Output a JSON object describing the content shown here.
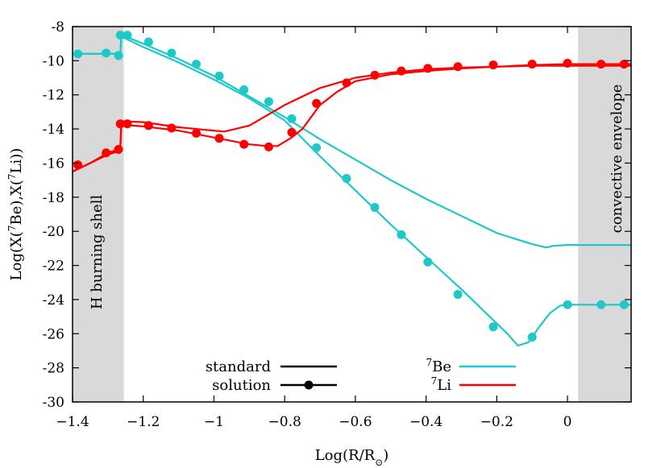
{
  "chart_data": {
    "type": "line",
    "xlabel": "Log(R/R",
    "xlabel_sub": "⊙",
    "xlabel_close": ")",
    "ylabel_parts": [
      "Log(X(",
      "7",
      "Be),X(",
      "7",
      "Li))"
    ],
    "xlim": [
      -1.4,
      0.18
    ],
    "ylim": [
      -30,
      -8
    ],
    "x_ticks": [
      {
        "v": -1.4,
        "label": "−1.4"
      },
      {
        "v": -1.2,
        "label": "−1.2"
      },
      {
        "v": -1.0,
        "label": "−1"
      },
      {
        "v": -0.8,
        "label": "−0.8"
      },
      {
        "v": -0.6,
        "label": "−0.6"
      },
      {
        "v": -0.4,
        "label": "−0.4"
      },
      {
        "v": -0.2,
        "label": "−0.2"
      },
      {
        "v": 0,
        "label": "0"
      }
    ],
    "y_ticks": [
      {
        "v": -8,
        "label": "-8"
      },
      {
        "v": -10,
        "label": "-10"
      },
      {
        "v": -12,
        "label": "-12"
      },
      {
        "v": -14,
        "label": "-14"
      },
      {
        "v": -16,
        "label": "-16"
      },
      {
        "v": -18,
        "label": "-18"
      },
      {
        "v": -20,
        "label": "-20"
      },
      {
        "v": -22,
        "label": "-22"
      },
      {
        "v": -24,
        "label": "-24"
      },
      {
        "v": -26,
        "label": "-26"
      },
      {
        "v": -28,
        "label": "-28"
      },
      {
        "v": -30,
        "label": "-30"
      }
    ],
    "shaded_regions": [
      {
        "x0": -1.4,
        "x1": -1.255,
        "label": "H burning shell",
        "color": "#d9d9d9"
      },
      {
        "x0": 0.03,
        "x1": 0.18,
        "label": "convective envelope",
        "color": "#d9d9d9"
      }
    ],
    "colors": {
      "be7": "#1ec8c8",
      "li7": "#ff0000",
      "legend_black": "#000000"
    },
    "legend": {
      "styles": [
        {
          "label": "standard",
          "marker": false
        },
        {
          "label": "solution",
          "marker": true
        }
      ],
      "species": [
        {
          "sup": "7",
          "label": "Be",
          "color": "#1ec8c8"
        },
        {
          "sup": "7",
          "label": "Li",
          "color": "#ff0000"
        }
      ]
    },
    "series": [
      {
        "name": "7Be standard",
        "color": "#1ec8c8",
        "markers": false,
        "x": [
          -1.4,
          -1.3,
          -1.27,
          -1.265,
          -1.262,
          -1.26,
          -1.2,
          -1.1,
          -1.0,
          -0.95,
          -0.9,
          -0.85,
          -0.8,
          -0.7,
          -0.6,
          -0.5,
          -0.4,
          -0.3,
          -0.2,
          -0.1,
          -0.06,
          -0.04,
          0.0,
          0.05,
          0.18
        ],
        "y": [
          -9.6,
          -9.6,
          -9.6,
          -9.6,
          -8.5,
          -8.5,
          -9.0,
          -9.9,
          -10.9,
          -11.5,
          -12.1,
          -12.7,
          -13.3,
          -14.6,
          -15.8,
          -17.0,
          -18.1,
          -19.1,
          -20.1,
          -20.75,
          -20.95,
          -20.85,
          -20.8,
          -20.8,
          -20.8
        ]
      },
      {
        "name": "7Be solution",
        "color": "#1ec8c8",
        "markers": true,
        "x": [
          -1.4,
          -1.3,
          -1.27,
          -1.265,
          -1.262,
          -1.26,
          -1.2,
          -1.1,
          -1.0,
          -0.9,
          -0.8,
          -0.7,
          -0.6,
          -0.5,
          -0.4,
          -0.3,
          -0.2,
          -0.17,
          -0.14,
          -0.11,
          -0.08,
          -0.05,
          -0.02,
          0.0,
          0.05,
          0.18
        ],
        "y": [
          -9.6,
          -9.6,
          -9.6,
          -9.75,
          -8.6,
          -8.6,
          -9.2,
          -10.1,
          -11.1,
          -12.2,
          -13.5,
          -15.6,
          -17.6,
          -19.6,
          -21.5,
          -23.4,
          -25.4,
          -26.0,
          -26.7,
          -26.5,
          -25.6,
          -24.8,
          -24.35,
          -24.3,
          -24.3,
          -24.3
        ]
      },
      {
        "name": "7Li standard",
        "color": "#ff0000",
        "markers": false,
        "x": [
          -1.4,
          -1.35,
          -1.3,
          -1.27,
          -1.265,
          -1.262,
          -1.26,
          -1.2,
          -1.1,
          -1.0,
          -0.97,
          -0.9,
          -0.8,
          -0.7,
          -0.6,
          -0.5,
          -0.4,
          -0.3,
          -0.2,
          -0.1,
          0.0,
          0.18
        ],
        "y": [
          -16.5,
          -16.0,
          -15.5,
          -15.3,
          -15.2,
          -13.6,
          -13.55,
          -13.6,
          -13.9,
          -14.1,
          -14.15,
          -13.8,
          -12.6,
          -11.6,
          -11.0,
          -10.7,
          -10.5,
          -10.4,
          -10.35,
          -10.3,
          -10.3,
          -10.3
        ]
      },
      {
        "name": "7Li solution",
        "color": "#ff0000",
        "markers": true,
        "x": [
          -1.4,
          -1.35,
          -1.3,
          -1.27,
          -1.265,
          -1.262,
          -1.26,
          -1.2,
          -1.1,
          -1.0,
          -0.9,
          -0.85,
          -0.82,
          -0.78,
          -0.75,
          -0.7,
          -0.65,
          -0.6,
          -0.5,
          -0.4,
          -0.3,
          -0.2,
          -0.1,
          0.0,
          0.1,
          0.18
        ],
        "y": [
          -16.5,
          -16.0,
          -15.4,
          -15.2,
          -15.2,
          -13.8,
          -13.75,
          -13.85,
          -14.1,
          -14.5,
          -14.9,
          -15.0,
          -15.0,
          -14.5,
          -14.0,
          -12.6,
          -11.8,
          -11.2,
          -10.8,
          -10.6,
          -10.45,
          -10.35,
          -10.25,
          -10.2,
          -10.2,
          -10.2
        ]
      }
    ],
    "marker_points": {
      "7Be solution": [
        [
          -1.385,
          -9.6
        ],
        [
          -1.305,
          -9.55
        ],
        [
          -1.27,
          -9.7
        ],
        [
          -1.265,
          -8.5
        ],
        [
          -1.245,
          -8.5
        ],
        [
          -1.185,
          -8.9
        ],
        [
          -1.12,
          -9.55
        ],
        [
          -1.05,
          -10.2
        ],
        [
          -0.985,
          -10.9
        ],
        [
          -0.915,
          -11.7
        ],
        [
          -0.845,
          -12.4
        ],
        [
          -0.78,
          -13.4
        ],
        [
          -0.71,
          -15.1
        ],
        [
          -0.625,
          -16.9
        ],
        [
          -0.545,
          -18.6
        ],
        [
          -0.47,
          -20.2
        ],
        [
          -0.395,
          -21.8
        ],
        [
          -0.31,
          -23.7
        ],
        [
          -0.21,
          -25.6
        ],
        [
          -0.1,
          -26.2
        ],
        [
          0.0,
          -24.3
        ],
        [
          0.095,
          -24.3
        ],
        [
          0.16,
          -24.3
        ]
      ],
      "7Li solution": [
        [
          -1.385,
          -16.1
        ],
        [
          -1.305,
          -15.4
        ],
        [
          -1.27,
          -15.2
        ],
        [
          -1.265,
          -13.7
        ],
        [
          -1.245,
          -13.7
        ],
        [
          -1.185,
          -13.8
        ],
        [
          -1.12,
          -13.95
        ],
        [
          -1.05,
          -14.25
        ],
        [
          -0.985,
          -14.55
        ],
        [
          -0.915,
          -14.9
        ],
        [
          -0.845,
          -15.05
        ],
        [
          -0.78,
          -14.2
        ],
        [
          -0.71,
          -12.5
        ],
        [
          -0.625,
          -11.3
        ],
        [
          -0.545,
          -10.85
        ],
        [
          -0.47,
          -10.6
        ],
        [
          -0.395,
          -10.45
        ],
        [
          -0.31,
          -10.35
        ],
        [
          -0.21,
          -10.25
        ],
        [
          -0.1,
          -10.2
        ],
        [
          0.0,
          -10.15
        ],
        [
          0.095,
          -10.2
        ],
        [
          0.16,
          -10.2
        ]
      ]
    }
  }
}
